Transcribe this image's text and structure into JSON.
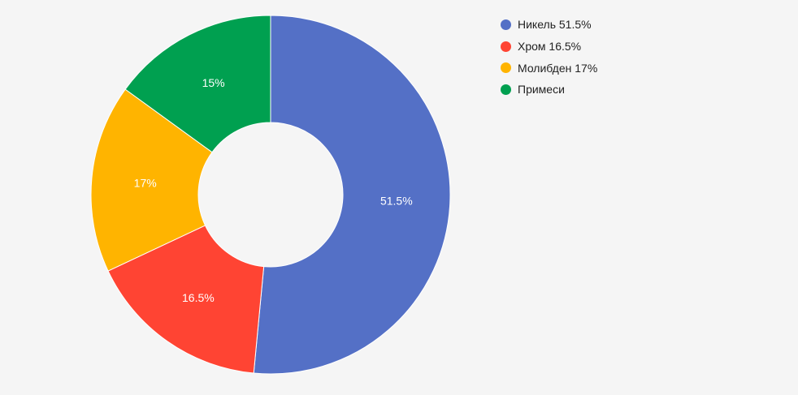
{
  "chart_data": {
    "type": "pie",
    "donut": true,
    "title": "",
    "legend_position": "right",
    "slices": [
      {
        "label": "Никель",
        "legend_text": "Никель 51.5%",
        "value": 51.5,
        "data_label": "51.5%",
        "color": "#5470c6"
      },
      {
        "label": "Хром",
        "legend_text": "Хром 16.5%",
        "value": 16.5,
        "data_label": "16.5%",
        "color": "#ff4433"
      },
      {
        "label": "Молибден",
        "legend_text": "Молибден 17%",
        "value": 17,
        "data_label": "17%",
        "color": "#ffb400"
      },
      {
        "label": "Примеси",
        "legend_text": "Примеси",
        "value": 15,
        "data_label": "15%",
        "color": "#00a050"
      }
    ]
  }
}
